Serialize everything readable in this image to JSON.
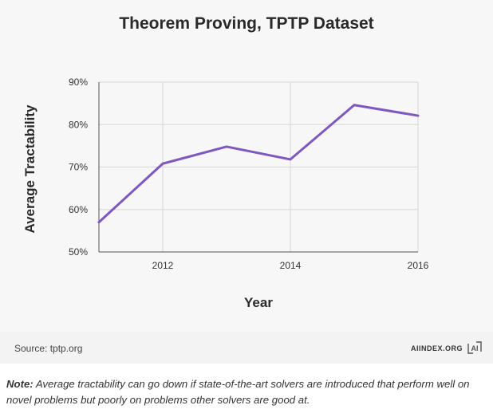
{
  "chart_data": {
    "type": "line",
    "title": "Theorem Proving, TPTP Dataset",
    "xlabel": "Year",
    "ylabel": "Average Tractability",
    "x": [
      2011,
      2012,
      2013,
      2014,
      2015,
      2016
    ],
    "series": [
      {
        "values": [
          57,
          70.8,
          74.8,
          71.8,
          84.6,
          82.1
        ]
      }
    ],
    "xlim": [
      2011,
      2016
    ],
    "ylim": [
      50,
      90
    ],
    "x_ticks": [
      2012,
      2014,
      2016
    ],
    "y_ticks": [
      {
        "value": 90,
        "label": "90%"
      },
      {
        "value": 80,
        "label": "80%"
      },
      {
        "value": 70,
        "label": "70%"
      },
      {
        "value": 60,
        "label": "60%"
      },
      {
        "value": 50,
        "label": "50%"
      }
    ],
    "grid": true,
    "line_color": "#7e57c2",
    "grid_color": "#dcdcdc"
  },
  "footer": {
    "source": "Source: tptp.org",
    "brand": "AIINDEX.ORG",
    "logo_text": "AI"
  },
  "note": {
    "label": "Note:",
    "text": " Average tractability can go down if state-of-the-art solvers are introduced that perform well on novel problems but poorly on problems other solvers are good at."
  }
}
